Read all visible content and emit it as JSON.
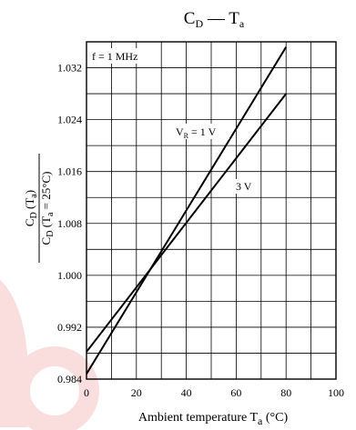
{
  "chart_data": {
    "type": "line",
    "title": {
      "main": "C",
      "main_sub": "D",
      "sep": " — T",
      "sep_sub": "a"
    },
    "condition_label": "f = 1 MHz",
    "xlabel": {
      "text": "Ambient temperature  T",
      "sub": "a",
      "unit": "  (°C)"
    },
    "ylabel": {
      "num": "C",
      "num_sub": "D",
      "num_rest": " (T",
      "num_sub2": "a",
      "num_end": ")",
      "den": "C",
      "den_sub": "D",
      "den_rest": " (T",
      "den_sub2": "a",
      "den_end": " = 25°C)"
    },
    "xlim": [
      0,
      100
    ],
    "ylim": [
      0.984,
      1.036
    ],
    "x_ticks": [
      0,
      20,
      40,
      60,
      80,
      100
    ],
    "x_tick_labels": [
      "0",
      "20",
      "40",
      "60",
      "80",
      "100"
    ],
    "y_ticks": [
      0.984,
      0.992,
      1.0,
      1.008,
      1.016,
      1.024,
      1.032
    ],
    "y_tick_labels": [
      "0.984",
      "0.992",
      "1.000",
      "1.008",
      "1.016",
      "1.024",
      "1.032"
    ],
    "grid": true,
    "series": [
      {
        "name_main": "V",
        "name_sub": "R",
        "name_rest": " = 1 V",
        "x": [
          0,
          80
        ],
        "y": [
          0.9848,
          1.0352
        ]
      },
      {
        "name_main": "3 V",
        "name_sub": "",
        "name_rest": "",
        "x": [
          0,
          80
        ],
        "y": [
          0.9882,
          1.028
        ]
      }
    ],
    "colors": {
      "line": "#000000",
      "grid": "#000000",
      "watermark": "#f3b3b3"
    }
  }
}
